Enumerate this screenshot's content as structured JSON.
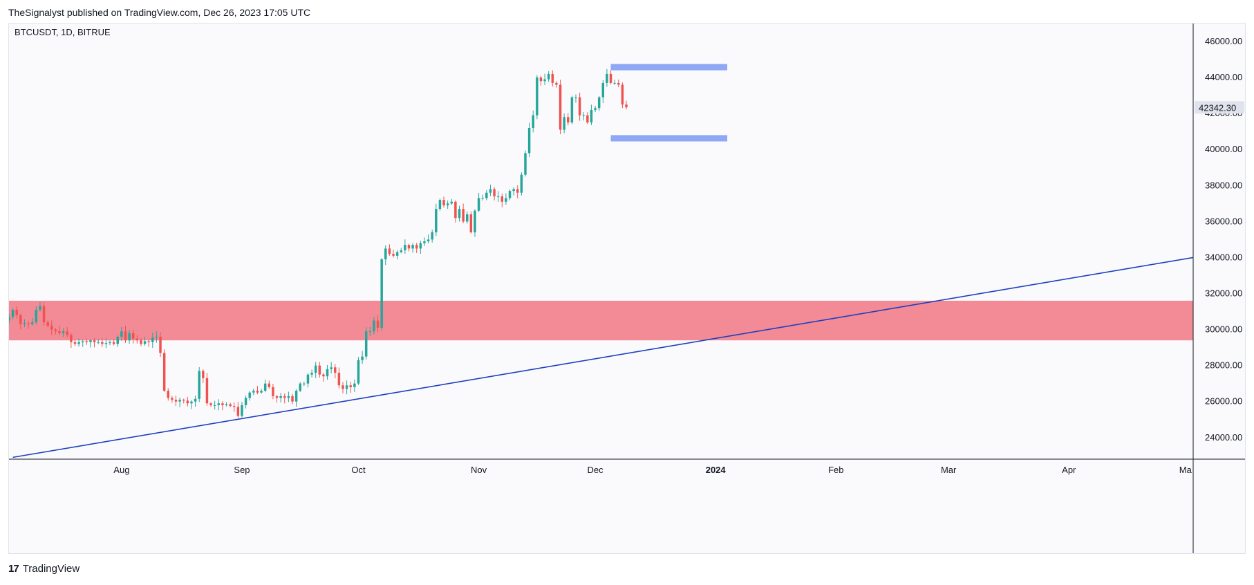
{
  "header": {
    "publish_line": "TheSignalyst published on TradingView.com, Dec 26, 2023 17:05 UTC"
  },
  "footer": {
    "brand_logo": "17",
    "brand_name": "TradingView"
  },
  "colors": {
    "up": "#26a69a",
    "down": "#ef5350",
    "trendline": "#1d3fbf",
    "demand_zone": "#f28b95",
    "range_band": "#8fa8f5",
    "price_tag_bg": "#e0e3eb"
  },
  "chart_data": {
    "type": "candlestick",
    "legend": "BTCUSDT, 1D, BITRUE",
    "ylim": [
      22800,
      47000
    ],
    "y_ticks": [
      24000,
      26000,
      28000,
      30000,
      32000,
      34000,
      36000,
      38000,
      40000,
      42000,
      44000,
      46000
    ],
    "y_tick_labels": [
      "24000.00",
      "26000.00",
      "28000.00",
      "30000.00",
      "32000.00",
      "34000.00",
      "36000.00",
      "38000.00",
      "40000.00",
      "42000.00",
      "44000.00",
      "46000.00"
    ],
    "x_range": [
      "2023-07-03",
      "2024-05-03"
    ],
    "x_ticks": [
      {
        "date": "2023-08-01",
        "label": "Aug",
        "bold": false
      },
      {
        "date": "2023-09-01",
        "label": "Sep",
        "bold": false
      },
      {
        "date": "2023-10-01",
        "label": "Oct",
        "bold": false
      },
      {
        "date": "2023-11-01",
        "label": "Nov",
        "bold": false
      },
      {
        "date": "2023-12-01",
        "label": "Dec",
        "bold": false
      },
      {
        "date": "2024-01-01",
        "label": "2024",
        "bold": true
      },
      {
        "date": "2024-02-01",
        "label": "Feb",
        "bold": false
      },
      {
        "date": "2024-03-01",
        "label": "Mar",
        "bold": false
      },
      {
        "date": "2024-04-01",
        "label": "Apr",
        "bold": false
      },
      {
        "date": "2024-05-01",
        "label": "Ma",
        "bold": false
      }
    ],
    "last_price": 42342.3,
    "last_price_label": "42342.30",
    "series_start": "2023-07-03",
    "close": [
      30700,
      31100,
      30800,
      30300,
      30350,
      30300,
      30400,
      31100,
      31300,
      30400,
      30200,
      30000,
      29900,
      29800,
      29900,
      29700,
      29300,
      29200,
      29300,
      29350,
      29300,
      29400,
      29300,
      29300,
      29200,
      29250,
      29300,
      29200,
      29600,
      29900,
      29400,
      29800,
      29500,
      29400,
      29200,
      29350,
      29300,
      29550,
      29600,
      28700,
      26600,
      26200,
      26100,
      26000,
      26100,
      26050,
      25900,
      26000,
      26150,
      27700,
      27300,
      25900,
      25800,
      25800,
      25900,
      25800,
      25850,
      25750,
      25700,
      25200,
      25800,
      26200,
      26500,
      26600,
      26500,
      26600,
      27000,
      26800,
      26300,
      26200,
      26300,
      26200,
      26300,
      26000,
      26600,
      27000,
      27000,
      27500,
      27600,
      28000,
      27500,
      27400,
      27800,
      27900,
      27600,
      26900,
      26700,
      26900,
      26800,
      27000,
      28300,
      28500,
      29900,
      29900,
      30500,
      30100,
      33900,
      34500,
      34200,
      34100,
      34300,
      34400,
      34700,
      34500,
      34700,
      34500,
      34800,
      34900,
      35000,
      35400,
      36700,
      37200,
      36900,
      37000,
      37100,
      36200,
      36700,
      36000,
      36400,
      35400,
      36600,
      37300,
      37300,
      37600,
      37800,
      37400,
      37400,
      37100,
      37300,
      37700,
      37800,
      37600,
      38600,
      39800,
      41200,
      41900,
      44000,
      43800,
      43900,
      44200,
      43700,
      43600,
      41100,
      41800,
      41500,
      42900,
      42900,
      41900,
      41900,
      41500,
      42200,
      42300,
      42900,
      43700,
      44200,
      43700,
      43700,
      43600,
      42500,
      42342.3
    ],
    "zones": {
      "demand_zone": {
        "y_low": 29400,
        "y_high": 31600,
        "from": "2023-07-01",
        "to": "2024-05-10"
      },
      "range_top": {
        "y_low": 44400,
        "y_high": 44750,
        "from": "2023-12-05",
        "to": "2024-01-04"
      },
      "range_bottom": {
        "y_low": 40450,
        "y_high": 40800,
        "from": "2023-12-05",
        "to": "2024-01-04"
      }
    },
    "trendline": {
      "start": [
        "2023-07-04",
        22900
      ],
      "end": [
        "2024-05-03",
        34000
      ]
    }
  }
}
